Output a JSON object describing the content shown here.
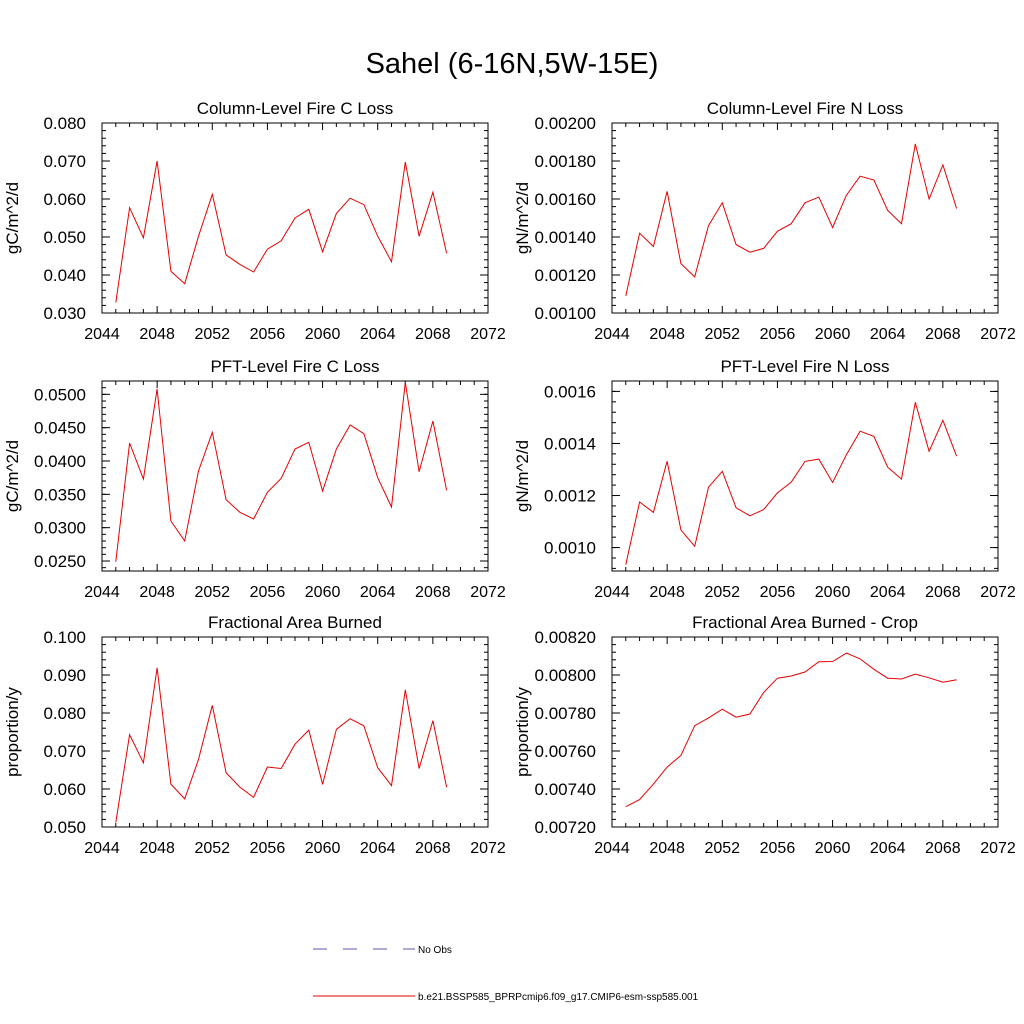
{
  "figure": {
    "title": "Sahel (6-16N,5W-15E)",
    "line_color": "#e60000",
    "axis_color": "#000000"
  },
  "legend": {
    "entries": [
      {
        "label": "No Obs",
        "style": "dashed",
        "color": "#5a5aa8"
      },
      {
        "label": "b.e21.BSSP585_BPRPcmip6.f09_g17.CMIP6-esm-ssp585.001",
        "style": "solid",
        "color": "#e60000"
      }
    ]
  },
  "chart_data": [
    {
      "type": "line",
      "title": "Column-Level Fire C Loss",
      "ylabel": "gC/m^2/d",
      "xlim": [
        2044,
        2072
      ],
      "ylim": [
        0.03,
        0.08
      ],
      "xticks": [
        "2044",
        "2048",
        "2052",
        "2056",
        "2060",
        "2064",
        "2068",
        "2072"
      ],
      "yticks": [
        0.03,
        0.04,
        0.05,
        0.06,
        0.07,
        0.08
      ],
      "ytick_labels": [
        "0.030",
        "0.040",
        "0.050",
        "0.060",
        "0.070",
        "0.080"
      ],
      "x": [
        2045,
        2046,
        2047,
        2048,
        2049,
        2050,
        2051,
        2052,
        2053,
        2054,
        2055,
        2056,
        2057,
        2058,
        2059,
        2060,
        2061,
        2062,
        2063,
        2064,
        2065,
        2066,
        2067,
        2068,
        2069
      ],
      "series": [
        {
          "values": [
            0.0328,
            0.0577,
            0.0498,
            0.07,
            0.041,
            0.0377,
            0.0502,
            0.0612,
            0.0453,
            0.0428,
            0.0408,
            0.0468,
            0.049,
            0.055,
            0.0573,
            0.0461,
            0.0562,
            0.0602,
            0.0585,
            0.0502,
            0.0435,
            0.0697,
            0.0502,
            0.0618,
            0.0457
          ]
        }
      ]
    },
    {
      "type": "line",
      "title": "Column-Level Fire N Loss",
      "ylabel": "gN/m^2/d",
      "xlim": [
        2044,
        2072
      ],
      "ylim": [
        0.001,
        0.002
      ],
      "xticks": [
        "2044",
        "2048",
        "2052",
        "2056",
        "2060",
        "2064",
        "2068",
        "2072"
      ],
      "yticks": [
        0.001,
        0.0012,
        0.0014,
        0.0016,
        0.0018,
        0.002
      ],
      "ytick_labels": [
        "0.00100",
        "0.00120",
        "0.00140",
        "0.00160",
        "0.00180",
        "0.00200"
      ],
      "x": [
        2045,
        2046,
        2047,
        2048,
        2049,
        2050,
        2051,
        2052,
        2053,
        2054,
        2055,
        2056,
        2057,
        2058,
        2059,
        2060,
        2061,
        2062,
        2063,
        2064,
        2065,
        2066,
        2067,
        2068,
        2069
      ],
      "series": [
        {
          "values": [
            0.00109,
            0.00142,
            0.00135,
            0.00164,
            0.00126,
            0.00119,
            0.00146,
            0.00158,
            0.00136,
            0.00132,
            0.00134,
            0.00143,
            0.00147,
            0.00158,
            0.00161,
            0.00145,
            0.00162,
            0.00172,
            0.0017,
            0.00154,
            0.00147,
            0.00189,
            0.0016,
            0.00178,
            0.00155
          ]
        }
      ]
    },
    {
      "type": "line",
      "title": "PFT-Level Fire C Loss",
      "ylabel": "gC/m^2/d",
      "xlim": [
        2044,
        2072
      ],
      "ylim": [
        0.0235,
        0.052
      ],
      "xticks": [
        "2044",
        "2048",
        "2052",
        "2056",
        "2060",
        "2064",
        "2068",
        "2072"
      ],
      "yticks": [
        0.025,
        0.03,
        0.035,
        0.04,
        0.045,
        0.05
      ],
      "ytick_labels": [
        "0.0250",
        "0.0300",
        "0.0350",
        "0.0400",
        "0.0450",
        "0.0500"
      ],
      "x": [
        2045,
        2046,
        2047,
        2048,
        2049,
        2050,
        2051,
        2052,
        2053,
        2054,
        2055,
        2056,
        2057,
        2058,
        2059,
        2060,
        2061,
        2062,
        2063,
        2064,
        2065,
        2066,
        2067,
        2068,
        2069
      ],
      "series": [
        {
          "values": [
            0.0249,
            0.0427,
            0.0373,
            0.0508,
            0.031,
            0.028,
            0.0385,
            0.0443,
            0.0342,
            0.0323,
            0.0313,
            0.0353,
            0.0374,
            0.0418,
            0.0428,
            0.0355,
            0.0418,
            0.0454,
            0.0441,
            0.0375,
            0.0331,
            0.0518,
            0.0384,
            0.046,
            0.0356
          ]
        }
      ]
    },
    {
      "type": "line",
      "title": "PFT-Level Fire N Loss",
      "ylabel": "gN/m^2/d",
      "xlim": [
        2044,
        2072
      ],
      "ylim": [
        0.00091,
        0.00164
      ],
      "xticks": [
        "2044",
        "2048",
        "2052",
        "2056",
        "2060",
        "2064",
        "2068",
        "2072"
      ],
      "yticks": [
        0.001,
        0.0012,
        0.0014,
        0.0016
      ],
      "ytick_labels": [
        "0.0010",
        "0.0012",
        "0.0014",
        "0.0016"
      ],
      "x": [
        2045,
        2046,
        2047,
        2048,
        2049,
        2050,
        2051,
        2052,
        2053,
        2054,
        2055,
        2056,
        2057,
        2058,
        2059,
        2060,
        2061,
        2062,
        2063,
        2064,
        2065,
        2066,
        2067,
        2068,
        2069
      ],
      "series": [
        {
          "values": [
            0.000935,
            0.001175,
            0.001135,
            0.001332,
            0.001068,
            0.001005,
            0.001232,
            0.001293,
            0.001153,
            0.001122,
            0.001146,
            0.00121,
            0.001251,
            0.001331,
            0.00134,
            0.00125,
            0.001357,
            0.001447,
            0.001427,
            0.001309,
            0.001263,
            0.001558,
            0.00137,
            0.001489,
            0.001351
          ]
        }
      ]
    },
    {
      "type": "line",
      "title": "Fractional Area Burned",
      "ylabel": "proportion/y",
      "xlim": [
        2044,
        2072
      ],
      "ylim": [
        0.05,
        0.1
      ],
      "xticks": [
        "2044",
        "2048",
        "2052",
        "2056",
        "2060",
        "2064",
        "2068",
        "2072"
      ],
      "yticks": [
        0.05,
        0.06,
        0.07,
        0.08,
        0.09,
        0.1
      ],
      "ytick_labels": [
        "0.050",
        "0.060",
        "0.070",
        "0.080",
        "0.090",
        "0.100"
      ],
      "x": [
        2045,
        2046,
        2047,
        2048,
        2049,
        2050,
        2051,
        2052,
        2053,
        2054,
        2055,
        2056,
        2057,
        2058,
        2059,
        2060,
        2061,
        2062,
        2063,
        2064,
        2065,
        2066,
        2067,
        2068,
        2069
      ],
      "series": [
        {
          "values": [
            0.0512,
            0.0743,
            0.0669,
            0.0919,
            0.0613,
            0.0574,
            0.0678,
            0.082,
            0.0643,
            0.0605,
            0.0578,
            0.0658,
            0.0654,
            0.0718,
            0.0755,
            0.0612,
            0.0757,
            0.0785,
            0.0766,
            0.0656,
            0.0609,
            0.0861,
            0.0654,
            0.078,
            0.0605
          ]
        }
      ]
    },
    {
      "type": "line",
      "title": "Fractional Area Burned - Crop",
      "ylabel": "proportion/y",
      "xlim": [
        2044,
        2072
      ],
      "ylim": [
        0.0072,
        0.0082
      ],
      "xticks": [
        "2044",
        "2048",
        "2052",
        "2056",
        "2060",
        "2064",
        "2068",
        "2072"
      ],
      "yticks": [
        0.0072,
        0.0074,
        0.0076,
        0.0078,
        0.008,
        0.0082
      ],
      "ytick_labels": [
        "0.00720",
        "0.00740",
        "0.00760",
        "0.00780",
        "0.00800",
        "0.00820"
      ],
      "x": [
        2045,
        2046,
        2047,
        2048,
        2049,
        2050,
        2051,
        2052,
        2053,
        2054,
        2055,
        2056,
        2057,
        2058,
        2059,
        2060,
        2061,
        2062,
        2063,
        2064,
        2065,
        2066,
        2067,
        2068,
        2069
      ],
      "series": [
        {
          "values": [
            0.007307,
            0.007344,
            0.007426,
            0.007515,
            0.007577,
            0.007733,
            0.007774,
            0.00782,
            0.007778,
            0.007795,
            0.007908,
            0.007983,
            0.007995,
            0.008016,
            0.00807,
            0.008071,
            0.008115,
            0.008085,
            0.00803,
            0.007983,
            0.007979,
            0.008004,
            0.007985,
            0.007962,
            0.007975
          ]
        }
      ]
    }
  ]
}
